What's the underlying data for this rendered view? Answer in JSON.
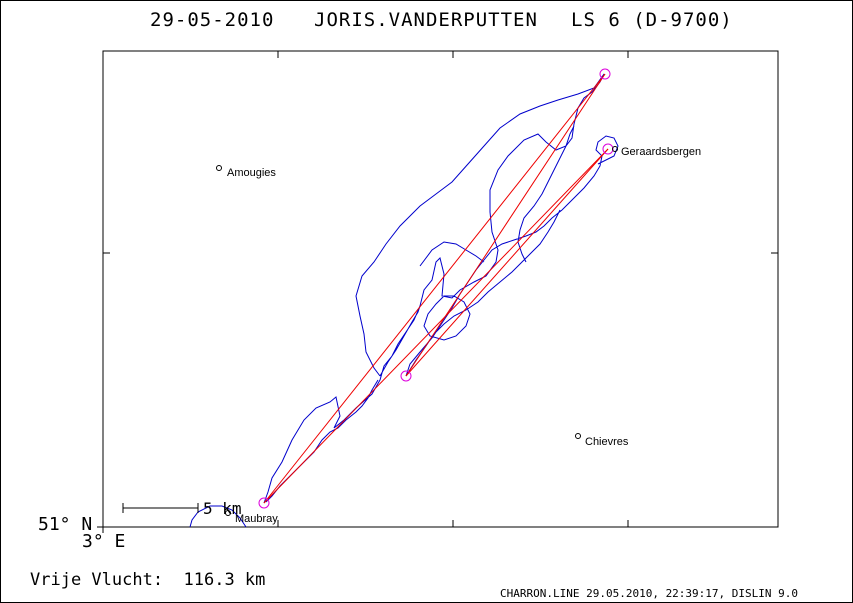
{
  "header": {
    "date": "29-05-2010",
    "pilot": "JORIS.VANDERPUTTEN",
    "glider": "LS 6 (D-9700)"
  },
  "map": {
    "lat_label": "51° N",
    "lon_label": "3° E",
    "scale_label": "5 km",
    "cities": [
      {
        "name": "Amougies"
      },
      {
        "name": "Geraardsbergen"
      },
      {
        "name": "Chievres"
      },
      {
        "name": "Maubray"
      }
    ],
    "colors": {
      "track": "#0000cc",
      "task": "#ee0000",
      "turnpoint": "#dd00dd"
    }
  },
  "footer": {
    "distance": "Vrije Vlucht:  116.3 km",
    "credit": "CHARRON.LINE 29.05.2010, 22:39:17, DISLIN 9.0"
  }
}
